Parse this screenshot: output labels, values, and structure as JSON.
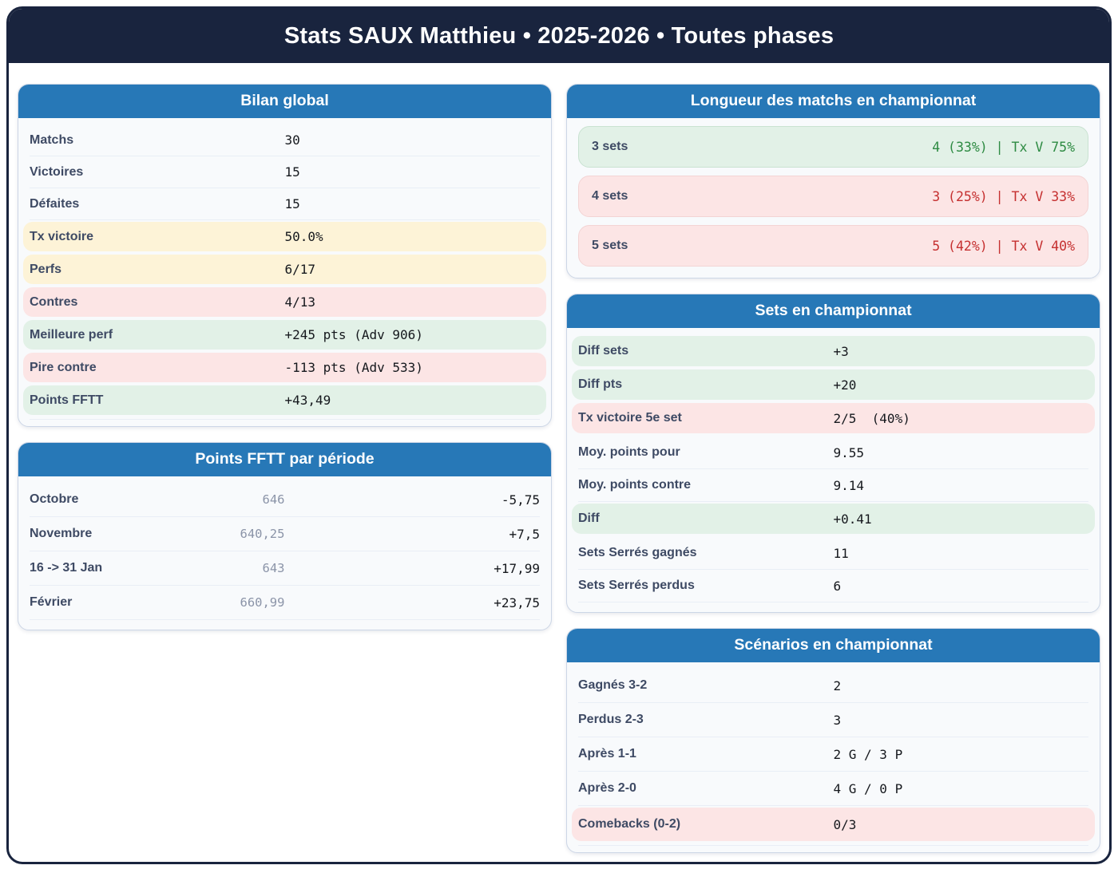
{
  "title": "Stats SAUX Matthieu • 2025-2026 • Toutes phases",
  "colors": {
    "navy": "#19243e",
    "blue": "#2778b7",
    "warn-bg": "#fdf3d7",
    "bad-bg": "#fce5e5",
    "good-bg": "#e2f1e7",
    "good-text": "#2e8b43",
    "bad-text": "#c53030"
  },
  "cards": {
    "bilan": {
      "title": "Bilan global",
      "rows": [
        {
          "label": "Matchs",
          "value": "30"
        },
        {
          "label": "Victoires",
          "value": "15"
        },
        {
          "label": "Défaites",
          "value": "15"
        },
        {
          "label": "Tx victoire",
          "value": "50.0%"
        },
        {
          "label": "Perfs",
          "value": "6/17"
        },
        {
          "label": "Contres",
          "value": "4/13"
        },
        {
          "label": "Meilleure perf",
          "value": "+245 pts (Adv 906)"
        },
        {
          "label": "Pire contre",
          "value": "-113 pts (Adv 533)"
        },
        {
          "label": "Points FFTT",
          "value": "+43,49"
        }
      ]
    },
    "periods": {
      "title": "Points FFTT par période",
      "rows": [
        {
          "label": "Octobre",
          "points": "646",
          "delta": "-5,75"
        },
        {
          "label": "Novembre",
          "points": "640,25",
          "delta": "+7,5"
        },
        {
          "label": "16 -> 31 Jan",
          "points": "643",
          "delta": "+17,99"
        },
        {
          "label": "Février",
          "points": "660,99",
          "delta": "+23,75"
        }
      ]
    },
    "longueur": {
      "title": "Longueur des matchs en championnat",
      "rows": [
        {
          "label": "3 sets",
          "value": "4 (33%) | Tx V 75%"
        },
        {
          "label": "4 sets",
          "value": "3 (25%) | Tx V 33%"
        },
        {
          "label": "5 sets",
          "value": "5 (42%) | Tx V 40%"
        }
      ]
    },
    "sets": {
      "title": "Sets en championnat",
      "rows": [
        {
          "label": "Diff sets",
          "value": "+3"
        },
        {
          "label": "Diff pts",
          "value": "+20"
        },
        {
          "label": "Tx victoire 5e set",
          "value": "2/5  (40%)"
        },
        {
          "label": "Moy. points pour",
          "value": "9.55"
        },
        {
          "label": "Moy. points contre",
          "value": "9.14"
        },
        {
          "label": "Diff",
          "value": "+0.41"
        },
        {
          "label": "Sets Serrés gagnés",
          "value": "11"
        },
        {
          "label": "Sets Serrés perdus",
          "value": "6"
        }
      ]
    },
    "scenarios": {
      "title": "Scénarios en championnat",
      "rows": [
        {
          "label": "Gagnés 3-2",
          "value": "2"
        },
        {
          "label": "Perdus 2-3",
          "value": "3"
        },
        {
          "label": "Après 1-1",
          "value": "2 G / 3 P"
        },
        {
          "label": "Après 2-0",
          "value": "4 G / 0 P"
        },
        {
          "label": "Comebacks (0-2)",
          "value": "0/3"
        }
      ]
    }
  }
}
